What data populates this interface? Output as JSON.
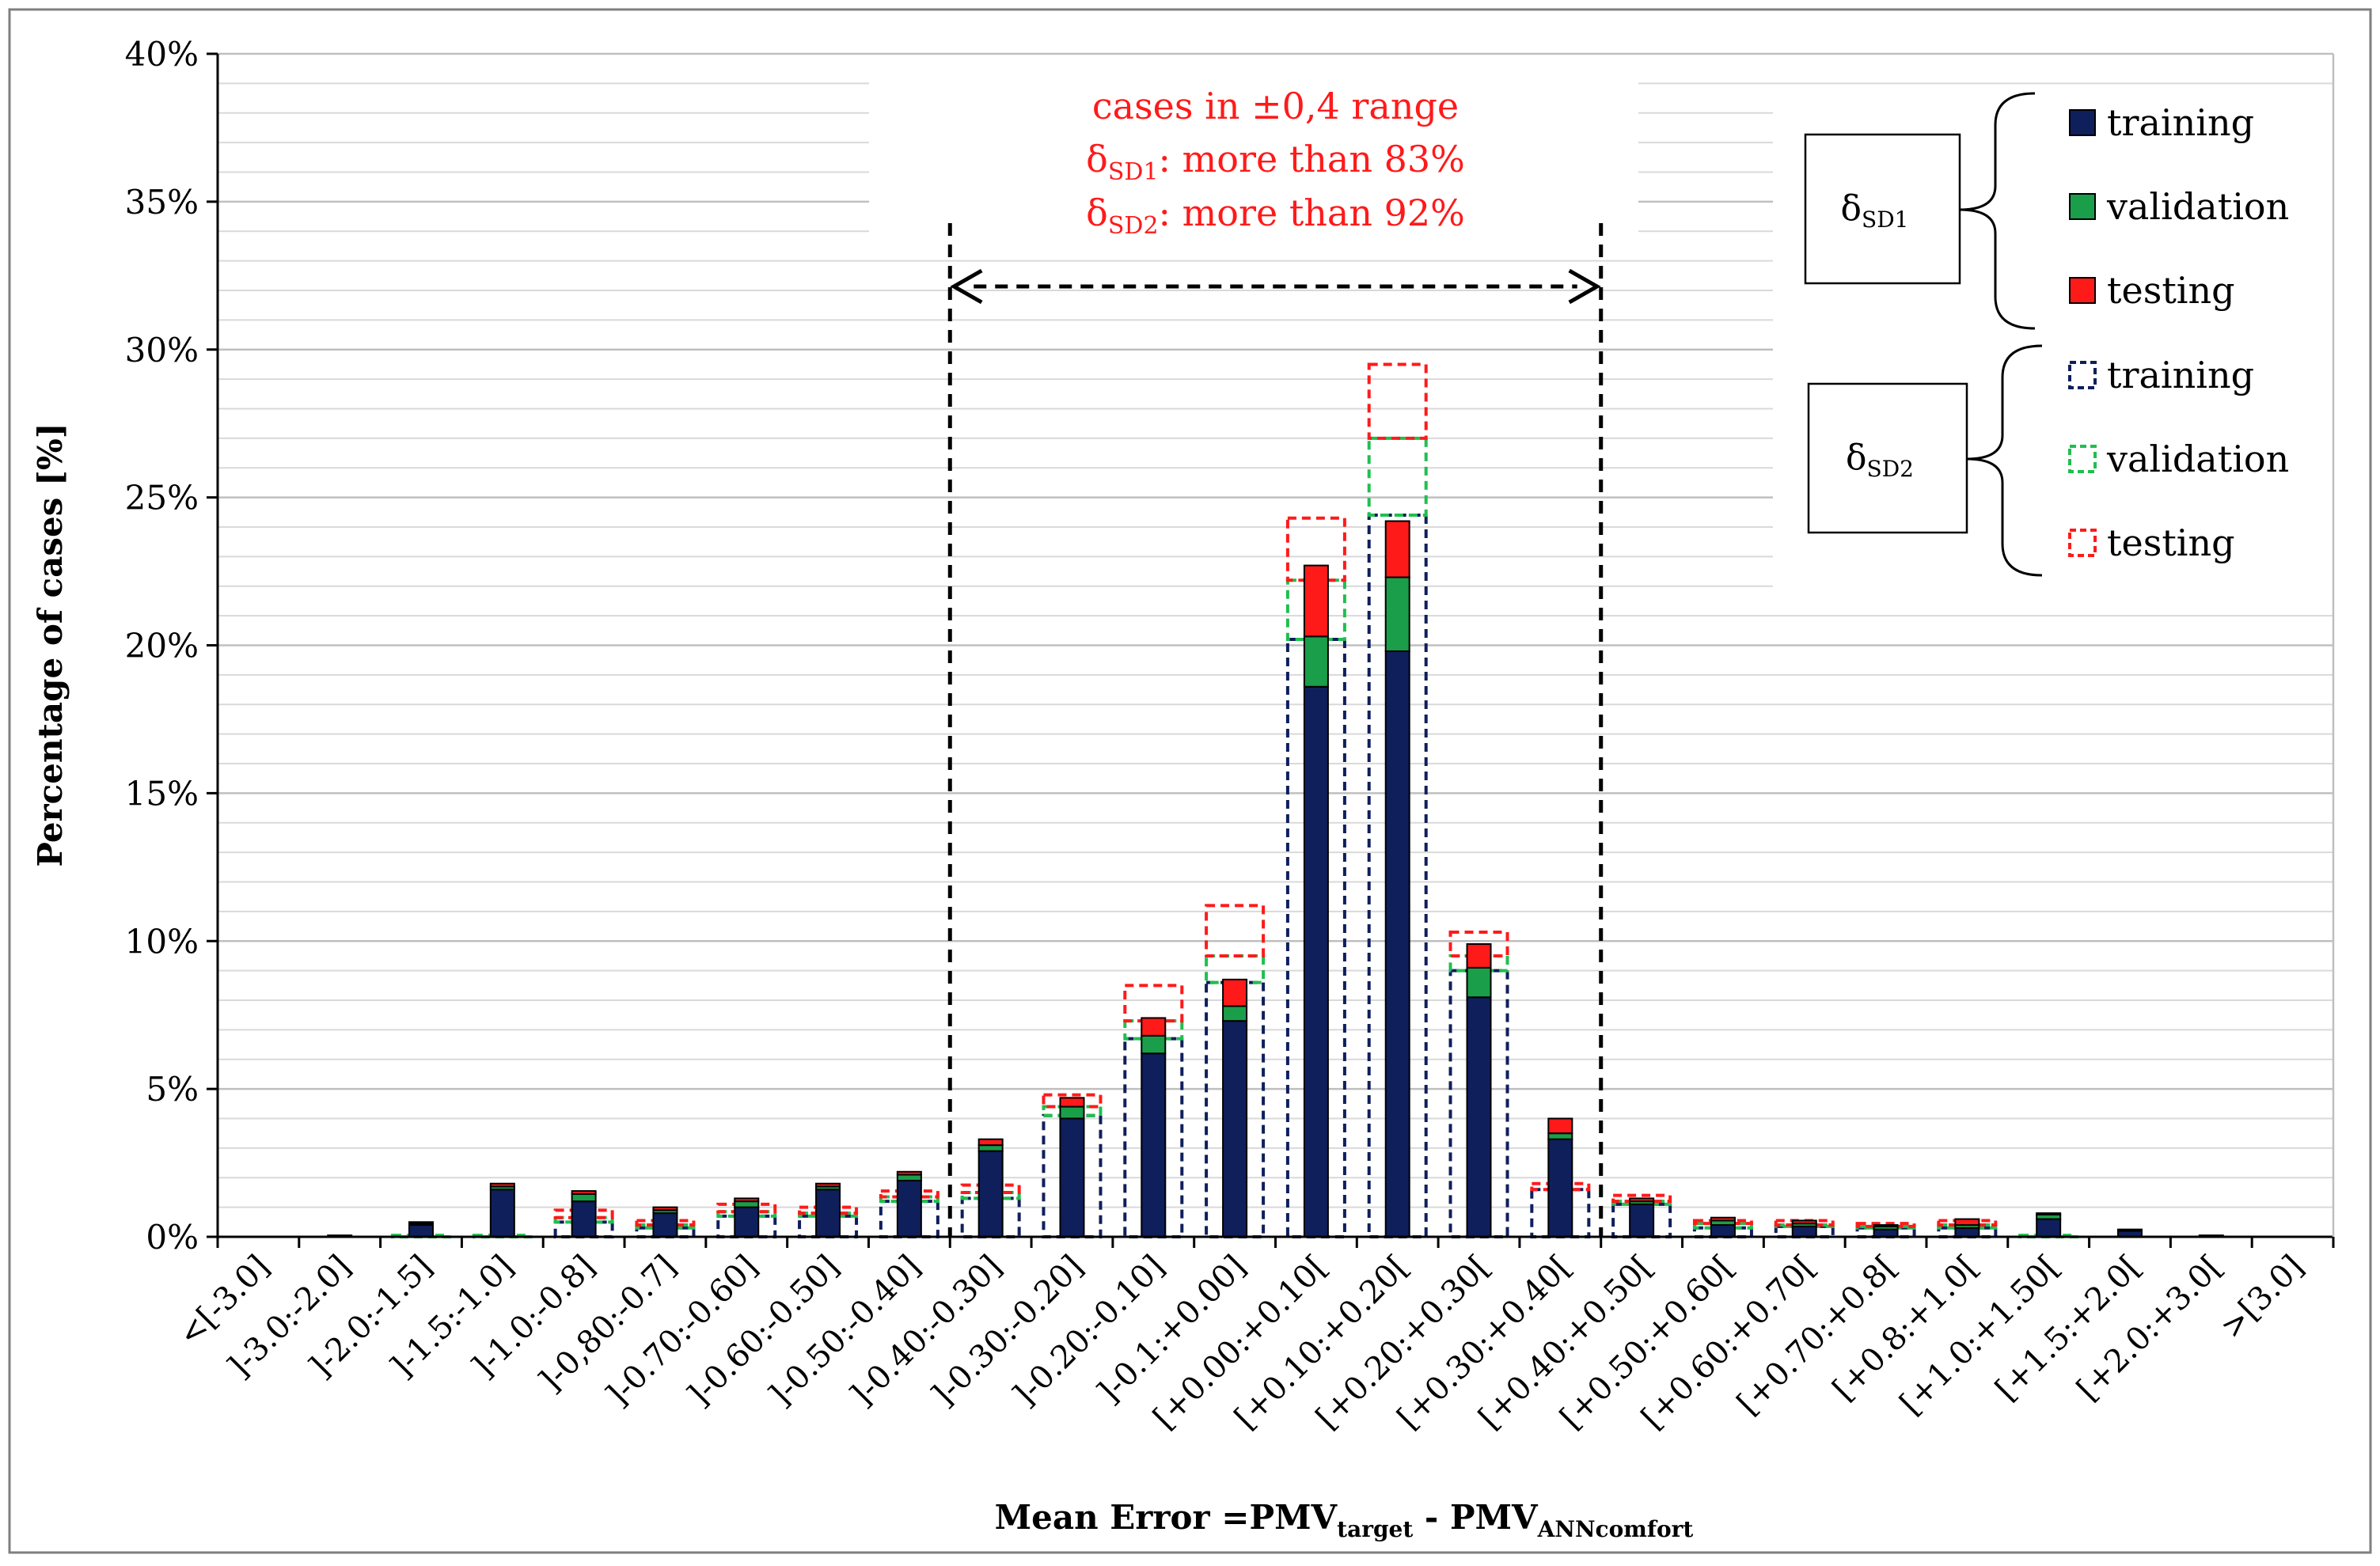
{
  "chart_data": {
    "type": "bar",
    "title": "",
    "xlabel": {
      "prefix": "Mean Error =PMV",
      "sub1": "target",
      "middle": " - PMV",
      "sub2": "ANNcomfort"
    },
    "ylabel": "Percentage of cases [%]",
    "ylim": [
      0,
      40
    ],
    "y_ticks": [
      "0%",
      "5%",
      "10%",
      "15%",
      "20%",
      "25%",
      "30%",
      "35%",
      "40%"
    ],
    "grid": true,
    "stacked": true,
    "categories": [
      "<[-3.0]",
      "]-3.0:-2.0]",
      "]-2.0:-1.5]",
      "]-1.5:-1.0]",
      "]-1.0:-0.8]",
      "]-0,80:-0.7]",
      "]-0.70:-0.60]",
      "]-0.60:-0.50]",
      "]-0.50:-0.40]",
      "]-0.40:-0.30]",
      "]-0.30:-0.20]",
      "]-0.20:-0.10]",
      "]-0.1:+0.00]",
      "[+0.00:+0.10[",
      "[+0.10:+0.20[",
      "[+0.20:+0.30[",
      "[+0.30:+0.40[",
      "[+0.40:+0.50[",
      "[+0.50:+0.60[",
      "[+0.60:+0.70[",
      "[+0.70:+0.8[",
      "[+0.8:+1.0[",
      "[+1.0:+1.50[",
      "[+1.5:+2.0[",
      "[+2.0:+3.0[",
      ">[3.0]"
    ],
    "groups": [
      {
        "name": "δSD1",
        "style": "solid",
        "series": [
          {
            "name": "training",
            "color": "#0f1f5c",
            "values": [
              0,
              0.05,
              0.4,
              1.6,
              1.2,
              0.8,
              1.0,
              1.6,
              1.9,
              2.9,
              4.0,
              6.2,
              7.3,
              18.6,
              19.8,
              8.1,
              3.3,
              1.1,
              0.4,
              0.35,
              0.25,
              0.3,
              0.6,
              0.2,
              0.05,
              0
            ]
          },
          {
            "name": "validation",
            "color": "#1a9e4a",
            "values": [
              0,
              0,
              0.05,
              0.1,
              0.25,
              0.1,
              0.2,
              0.1,
              0.2,
              0.2,
              0.4,
              0.6,
              0.5,
              1.7,
              2.5,
              1.0,
              0.2,
              0.1,
              0.15,
              0.1,
              0.1,
              0.1,
              0.15,
              0,
              0,
              0
            ]
          },
          {
            "name": "testing",
            "color": "#ff1a1a",
            "values": [
              0,
              0,
              0.05,
              0.1,
              0.1,
              0.1,
              0.1,
              0.1,
              0.1,
              0.2,
              0.3,
              0.6,
              0.9,
              2.4,
              1.9,
              0.8,
              0.5,
              0.1,
              0.1,
              0.1,
              0.05,
              0.2,
              0.05,
              0.05,
              0,
              0
            ]
          }
        ]
      },
      {
        "name": "δSD2",
        "style": "dashed",
        "series": [
          {
            "name": "training",
            "color": "#0f1f5c",
            "values": [
              0,
              0,
              0,
              0,
              0.5,
              0.3,
              0.7,
              0.7,
              1.2,
              1.3,
              4.1,
              6.7,
              8.6,
              20.2,
              24.4,
              9.0,
              1.6,
              1.1,
              0.3,
              0.35,
              0.3,
              0.3,
              0,
              0,
              0,
              0
            ]
          },
          {
            "name": "validation",
            "color": "#1fbf4f",
            "values": [
              0,
              0,
              0.05,
              0.05,
              0.15,
              0.1,
              0.15,
              0.1,
              0.15,
              0.2,
              0.3,
              0.6,
              0.9,
              2.0,
              2.6,
              0.5,
              0,
              0.1,
              0.15,
              0.05,
              0.05,
              0.1,
              0.05,
              0,
              0,
              0
            ]
          },
          {
            "name": "testing",
            "color": "#ff1a1a",
            "values": [
              0,
              0,
              0,
              0,
              0.25,
              0.15,
              0.25,
              0.2,
              0.2,
              0.25,
              0.4,
              1.2,
              1.7,
              2.1,
              2.5,
              0.8,
              0.2,
              0.2,
              0.1,
              0.15,
              0.1,
              0.15,
              0,
              0,
              0,
              0
            ]
          }
        ]
      }
    ],
    "annotation": {
      "line1": "cases in ±0,4 range",
      "line2_prefix": "δ",
      "line2_sub": "SD1",
      "line2_suffix": ": more than 83%",
      "line3_prefix": "δ",
      "line3_sub": "SD2",
      "line3_suffix": ": more than 92%",
      "color": "#ff1a1a",
      "range_from_index": 9,
      "range_to_index": 16
    },
    "legend": {
      "position": "top-right",
      "group1_label_prefix": "δ",
      "group1_label_sub": "SD1",
      "group2_label_prefix": "δ",
      "group2_label_sub": "SD2",
      "entries1": [
        "training",
        "validation",
        "testing"
      ],
      "entries2": [
        "training",
        "validation",
        "testing"
      ]
    }
  }
}
